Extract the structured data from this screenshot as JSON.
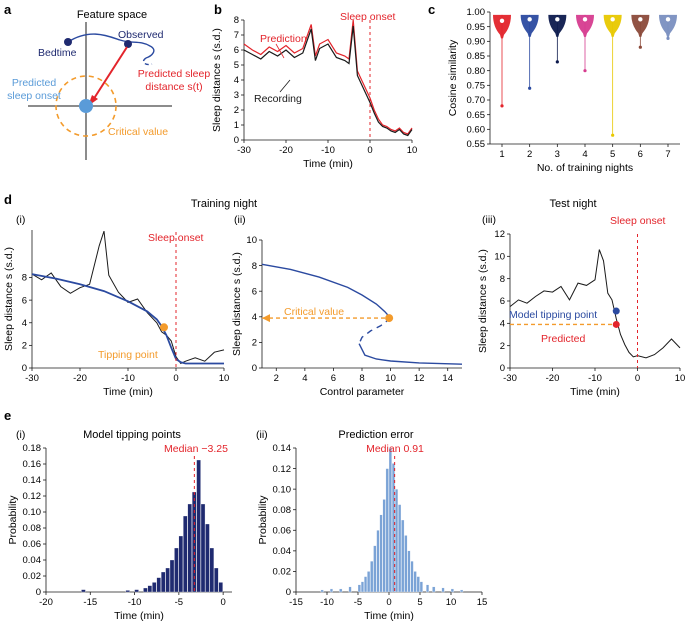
{
  "colors": {
    "black": "#1a1a1a",
    "red": "#e3242b",
    "blue": "#2b4aa0",
    "orange": "#f39b2c",
    "lightblue": "#5a9bd8",
    "darknavy": "#0d1a4d",
    "bar_navy": "#1f2a70",
    "bar_lightblue": "#7ba3d6"
  },
  "panels": {
    "a": {
      "label": "a",
      "feature_space": "Feature space",
      "bedtime": "Bedtime",
      "observed": "Observed",
      "predicted_distance": [
        "Predicted sleep",
        "distance s(t)"
      ],
      "predicted_onset": [
        "Predicted",
        "sleep onset"
      ],
      "critical_value": "Critical value"
    },
    "b": {
      "label": "b",
      "prediction": "Prediction",
      "recording": "Recording",
      "sleep_onset": "Sleep onset",
      "ylabel": "Sleep distance s (s.d.)",
      "xlabel": "Time (min)",
      "xticks": [
        "-30",
        "-20",
        "-10",
        "0",
        "10"
      ],
      "yticks": [
        "0",
        "1",
        "2",
        "3",
        "4",
        "5",
        "6",
        "7",
        "8"
      ]
    },
    "c": {
      "label": "c",
      "ylabel": "Cosine similarity",
      "xlabel": "No. of training nights",
      "xticks": [
        "1",
        "2",
        "3",
        "4",
        "5",
        "6",
        "7"
      ],
      "yticks": [
        "0.55",
        "0.60",
        "0.65",
        "0.70",
        "0.75",
        "0.80",
        "0.85",
        "0.90",
        "0.95",
        "1.00"
      ]
    },
    "d": {
      "label": "d",
      "training_night": "Training night",
      "test_night": "Test night",
      "i": {
        "sub": "(i)",
        "sleep_onset": "Sleep onset",
        "tipping_point": "Tipping point",
        "ylabel": "Sleep distance s (s.d.)",
        "xlabel": "Time (min)",
        "xticks": [
          "-30",
          "-20",
          "-10",
          "0",
          "10"
        ],
        "yticks": [
          "0",
          "2",
          "4",
          "6",
          "8"
        ]
      },
      "ii": {
        "sub": "(ii)",
        "critical_value": "Critical value",
        "ylabel": "Sleep distance s (s.d.)",
        "xlabel": "Control parameter",
        "xticks": [
          "2",
          "4",
          "6",
          "8",
          "10",
          "12",
          "14"
        ],
        "yticks": [
          "0",
          "2",
          "4",
          "6",
          "8",
          "10"
        ]
      },
      "iii": {
        "sub": "(iii)",
        "sleep_onset": "Sleep onset",
        "model_tipping_point": "Model tipping point",
        "predicted": "Predicted",
        "ylabel": "Sleep distance s (s.d.)",
        "xlabel": "Time (min)",
        "xticks": [
          "-30",
          "-20",
          "-10",
          "0",
          "10"
        ],
        "yticks": [
          "0",
          "2",
          "4",
          "6",
          "8",
          "10",
          "12"
        ]
      }
    },
    "e": {
      "label": "e",
      "i": {
        "sub": "(i)",
        "title": "Model tipping points",
        "median": "Median −3.25",
        "ylabel": "Probability",
        "xlabel": "Time (min)",
        "xticks": [
          "-20",
          "-15",
          "-10",
          "-5",
          "0"
        ],
        "yticks": [
          "0",
          "0.02",
          "0.04",
          "0.06",
          "0.08",
          "0.10",
          "0.12",
          "0.14",
          "0.16",
          "0.18"
        ]
      },
      "ii": {
        "sub": "(ii)",
        "title": "Prediction error",
        "median": "Median 0.91",
        "ylabel": "Probability",
        "xlabel": "Time (min)",
        "xticks": [
          "-15",
          "-10",
          "-5",
          "0",
          "5",
          "10",
          "15"
        ],
        "yticks": [
          "0",
          "0.02",
          "0.04",
          "0.06",
          "0.08",
          "0.10",
          "0.12",
          "0.14"
        ]
      }
    }
  },
  "chart_data": [
    {
      "panel": "b",
      "type": "line",
      "xlim": [
        -30,
        10
      ],
      "ylim": [
        0,
        8
      ],
      "series": [
        {
          "name": "Prediction",
          "color": "#e3242b",
          "x": [
            -30,
            -28,
            -26,
            -24,
            -22,
            -20,
            -18,
            -16,
            -14,
            -13,
            -12,
            -10,
            -8,
            -6,
            -5,
            -4,
            -3,
            -2,
            -1,
            0,
            1,
            2,
            3,
            4,
            5,
            6,
            7,
            8,
            9,
            10
          ],
          "y": [
            6.4,
            6.0,
            5.7,
            6.2,
            5.9,
            6.3,
            5.8,
            6.1,
            7.7,
            5.6,
            6.4,
            6.7,
            5.8,
            5.6,
            5.4,
            8.0,
            4.6,
            4.0,
            3.4,
            2.8,
            2.0,
            1.4,
            1.0,
            0.9,
            0.7,
            0.6,
            0.8,
            0.5,
            0.4,
            0.8
          ]
        },
        {
          "name": "Recording",
          "color": "#1a1a1a",
          "x": [
            -30,
            -28,
            -26,
            -24,
            -22,
            -20,
            -18,
            -16,
            -14,
            -13,
            -12,
            -10,
            -8,
            -6,
            -5,
            -4,
            -3,
            -2,
            -1,
            0,
            1,
            2,
            3,
            4,
            5,
            6,
            7,
            8,
            9,
            10
          ],
          "y": [
            6.0,
            5.7,
            5.4,
            5.9,
            5.6,
            6.0,
            5.5,
            5.8,
            7.4,
            5.3,
            6.1,
            6.4,
            5.5,
            5.3,
            5.1,
            7.6,
            4.3,
            3.7,
            3.1,
            2.5,
            1.8,
            1.2,
            0.9,
            0.8,
            0.6,
            0.5,
            0.7,
            0.4,
            0.3,
            0.7
          ]
        }
      ],
      "vline_x": 0
    },
    {
      "panel": "c",
      "type": "scatter",
      "categories": [
        "1",
        "2",
        "3",
        "4",
        "5",
        "6",
        "7"
      ],
      "ylim": [
        0.55,
        1.0
      ],
      "series": [
        {
          "name": "1",
          "color": "#e3242b",
          "median": 0.97,
          "min": 0.68,
          "max": 0.99
        },
        {
          "name": "2",
          "color": "#2b4aa0",
          "median": 0.975,
          "min": 0.74,
          "max": 0.99
        },
        {
          "name": "3",
          "color": "#0d1a4d",
          "median": 0.975,
          "min": 0.83,
          "max": 0.99
        },
        {
          "name": "4",
          "color": "#d63c8f",
          "median": 0.975,
          "min": 0.8,
          "max": 0.99
        },
        {
          "name": "5",
          "color": "#e8c800",
          "median": 0.975,
          "min": 0.58,
          "max": 0.99
        },
        {
          "name": "6",
          "color": "#8b4a3a",
          "median": 0.975,
          "min": 0.88,
          "max": 0.99
        },
        {
          "name": "7",
          "color": "#7a8fc0",
          "median": 0.975,
          "min": 0.91,
          "max": 0.99
        }
      ]
    },
    {
      "panel": "d-i",
      "type": "line",
      "xlim": [
        -30,
        10
      ],
      "ylim": [
        0,
        10
      ],
      "series": [
        {
          "name": "recording",
          "color": "#1a1a1a",
          "x": [
            -30,
            -28,
            -26,
            -24,
            -22,
            -20,
            -18,
            -16,
            -15,
            -14,
            -12,
            -10,
            -8,
            -6,
            -4,
            -3,
            -2,
            -1,
            0,
            1,
            2,
            4,
            6,
            8,
            10
          ],
          "y": [
            8.3,
            7.8,
            8.4,
            7.2,
            6.6,
            7.1,
            7.4,
            10.8,
            12.1,
            8.2,
            6.7,
            5.8,
            6.1,
            4.9,
            4.0,
            3.2,
            2.9,
            2.4,
            1.0,
            0.4,
            0.6,
            0.9,
            0.6,
            1.4,
            1.6
          ]
        },
        {
          "name": "model",
          "color": "#2b4aa0",
          "x": [
            -30,
            -25,
            -20,
            -15,
            -10,
            -6,
            -4,
            -3,
            -2,
            -1,
            0,
            1,
            2,
            4,
            6,
            8,
            10
          ],
          "y": [
            8.3,
            7.9,
            7.4,
            6.8,
            5.9,
            5.0,
            4.3,
            3.7,
            2.9,
            1.8,
            0.8,
            0.5,
            0.4,
            0.4,
            0.4,
            0.4,
            0.4
          ]
        }
      ],
      "tipping_point": {
        "x": -2.5,
        "y": 3.6
      },
      "vline_x": 0
    },
    {
      "panel": "d-ii",
      "type": "line",
      "xlim": [
        1,
        15
      ],
      "ylim": [
        0,
        10
      ],
      "series": [
        {
          "name": "upper branch",
          "color": "#2b4aa0",
          "x": [
            1,
            3,
            5,
            7,
            8,
            9,
            9.6,
            10
          ],
          "y": [
            8.1,
            7.7,
            7.1,
            6.3,
            5.7,
            5.0,
            4.4,
            3.9
          ]
        },
        {
          "name": "unstable branch",
          "color": "#2b4aa0",
          "dashed": true,
          "x": [
            10,
            9.3,
            8.6,
            8.0,
            7.8
          ],
          "y": [
            3.9,
            3.3,
            2.9,
            2.4,
            1.9
          ]
        },
        {
          "name": "lower branch",
          "color": "#2b4aa0",
          "x": [
            7.8,
            8.2,
            9,
            10,
            12,
            15
          ],
          "y": [
            1.9,
            1.0,
            0.7,
            0.55,
            0.4,
            0.3
          ]
        }
      ],
      "critical_point": {
        "x": 9.9,
        "y": 3.9
      }
    },
    {
      "panel": "d-iii",
      "type": "line",
      "xlim": [
        -30,
        10
      ],
      "ylim": [
        0,
        12
      ],
      "series": [
        {
          "name": "recording",
          "color": "#1a1a1a",
          "x": [
            -30,
            -28,
            -26,
            -24,
            -22,
            -20,
            -18,
            -16,
            -14,
            -12,
            -10,
            -9,
            -8,
            -7,
            -6,
            -5,
            -4,
            -3,
            -2,
            -1,
            0,
            2,
            4,
            6,
            8,
            10
          ],
          "y": [
            5.5,
            6.1,
            5.8,
            6.4,
            6.9,
            6.8,
            7.3,
            6.1,
            7.6,
            7.4,
            7.9,
            10.6,
            9.6,
            6.7,
            6.1,
            4.4,
            3.0,
            2.1,
            1.4,
            1.0,
            1.1,
            0.9,
            1.2,
            1.8,
            2.6,
            1.8
          ]
        }
      ],
      "model_tipping_point": {
        "x": -5,
        "y": 5.1
      },
      "predicted": {
        "x": -5,
        "y": 3.9
      },
      "vline_x": 0
    },
    {
      "panel": "e-i",
      "type": "bar",
      "xlim": [
        -20,
        1
      ],
      "ylim": [
        0,
        0.18
      ],
      "bin_width": 0.5,
      "bins": [
        -16,
        -11,
        -10,
        -9,
        -8.5,
        -8,
        -7.5,
        -7,
        -6.5,
        -6,
        -5.5,
        -5,
        -4.5,
        -4,
        -3.5,
        -3,
        -2.5,
        -2,
        -1.5,
        -1,
        -0.5
      ],
      "values": [
        0.003,
        0.002,
        0.003,
        0.005,
        0.008,
        0.012,
        0.018,
        0.025,
        0.03,
        0.04,
        0.055,
        0.07,
        0.095,
        0.11,
        0.125,
        0.165,
        0.11,
        0.085,
        0.055,
        0.03,
        0.012
      ],
      "median": -3.25
    },
    {
      "panel": "e-ii",
      "type": "bar",
      "xlim": [
        -15,
        15
      ],
      "ylim": [
        0,
        0.14
      ],
      "bin_width": 0.5,
      "bins": [
        -11,
        -9.5,
        -8,
        -6.5,
        -5,
        -4.5,
        -4,
        -3.5,
        -3,
        -2.5,
        -2,
        -1.5,
        -1,
        -0.5,
        0,
        0.5,
        1,
        1.5,
        2,
        2.5,
        3,
        3.5,
        4,
        4.5,
        5,
        6,
        7,
        8.5,
        10,
        11.5
      ],
      "values": [
        0.002,
        0.003,
        0.003,
        0.005,
        0.007,
        0.01,
        0.015,
        0.02,
        0.03,
        0.045,
        0.06,
        0.075,
        0.09,
        0.12,
        0.14,
        0.125,
        0.1,
        0.085,
        0.07,
        0.055,
        0.04,
        0.03,
        0.02,
        0.015,
        0.01,
        0.007,
        0.005,
        0.004,
        0.003,
        0.002
      ],
      "median": 0.91
    }
  ]
}
